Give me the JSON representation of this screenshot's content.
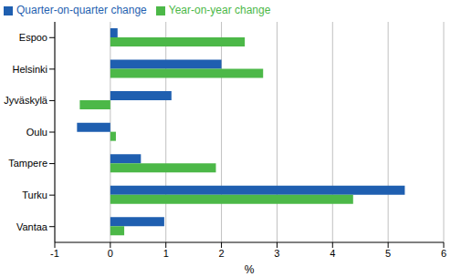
{
  "chart_data": {
    "type": "bar",
    "orientation": "horizontal",
    "categories": [
      "Espoo",
      "Helsinki",
      "Jyväskylä",
      "Oulu",
      "Tampere",
      "Turku",
      "Vantaa"
    ],
    "series": [
      {
        "name": "Quarter-on-quarter change",
        "color": "#1f5fb0",
        "values": [
          0.13,
          2.0,
          1.1,
          -0.6,
          0.55,
          5.3,
          0.97
        ]
      },
      {
        "name": "Year-on-year change",
        "color": "#4cb848",
        "values": [
          2.42,
          2.75,
          -0.55,
          0.1,
          1.9,
          4.37,
          0.25
        ]
      }
    ],
    "x_label": "%",
    "xlim": [
      -1,
      6
    ],
    "xticks": [
      -1,
      0,
      1,
      2,
      3,
      4,
      5,
      6
    ],
    "grid": true,
    "legend": "top-left"
  }
}
